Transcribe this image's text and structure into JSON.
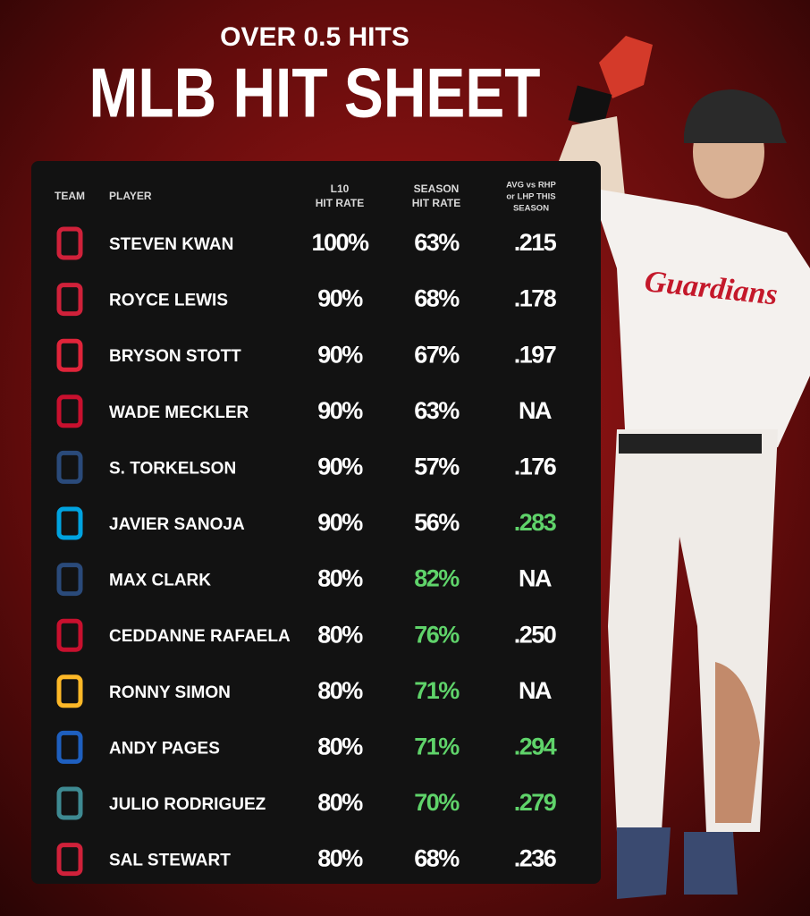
{
  "header": {
    "kicker": "OVER 0.5 HITS",
    "title": "MLB HIT SHEET"
  },
  "photo": {
    "jersey_text": "Guardians"
  },
  "table": {
    "columns": [
      [
        "TEAM"
      ],
      [
        "PLAYER"
      ],
      [
        "L10",
        "HIT RATE"
      ],
      [
        "SEASON",
        "HIT RATE"
      ],
      [
        "AVG vs RHP",
        "or LHP THIS",
        "SEASON"
      ]
    ],
    "green": "#5fd36a",
    "rows": [
      {
        "logo_color": "#d0213a",
        "player": "STEVEN KWAN",
        "l10": "100%",
        "season": "63%",
        "avg": ".215",
        "highlight": []
      },
      {
        "logo_color": "#d0213a",
        "player": "ROYCE LEWIS",
        "l10": "90%",
        "season": "68%",
        "avg": ".178",
        "highlight": []
      },
      {
        "logo_color": "#e0243a",
        "player": "BRYSON STOTT",
        "l10": "90%",
        "season": "67%",
        "avg": ".197",
        "highlight": []
      },
      {
        "logo_color": "#c8102e",
        "player": "WADE MECKLER",
        "l10": "90%",
        "season": "63%",
        "avg": "NA",
        "highlight": []
      },
      {
        "logo_color": "#2a4a7a",
        "player": "S. TORKELSON",
        "l10": "90%",
        "season": "57%",
        "avg": ".176",
        "highlight": []
      },
      {
        "logo_color": "#00a3e0",
        "player": "JAVIER SANOJA",
        "l10": "90%",
        "season": "56%",
        "avg": ".283",
        "highlight": [
          "avg"
        ]
      },
      {
        "logo_color": "#2a4a7a",
        "player": "MAX CLARK",
        "l10": "80%",
        "season": "82%",
        "avg": "NA",
        "highlight": [
          "season"
        ]
      },
      {
        "logo_color": "#c8102e",
        "player": "CEDDANNE RAFAELA",
        "l10": "80%",
        "season": "76%",
        "avg": ".250",
        "highlight": [
          "season"
        ]
      },
      {
        "logo_color": "#fdb827",
        "player": "RONNY SIMON",
        "l10": "80%",
        "season": "71%",
        "avg": "NA",
        "highlight": [
          "season"
        ]
      },
      {
        "logo_color": "#1e5fbf",
        "player": "ANDY PAGES",
        "l10": "80%",
        "season": "71%",
        "avg": ".294",
        "highlight": [
          "season",
          "avg"
        ]
      },
      {
        "logo_color": "#3e8a92",
        "player": "JULIO RODRIGUEZ",
        "l10": "80%",
        "season": "70%",
        "avg": ".279",
        "highlight": [
          "season",
          "avg"
        ]
      },
      {
        "logo_color": "#d0213a",
        "player": "SAL STEWART",
        "l10": "80%",
        "season": "68%",
        "avg": ".236",
        "highlight": []
      }
    ]
  }
}
